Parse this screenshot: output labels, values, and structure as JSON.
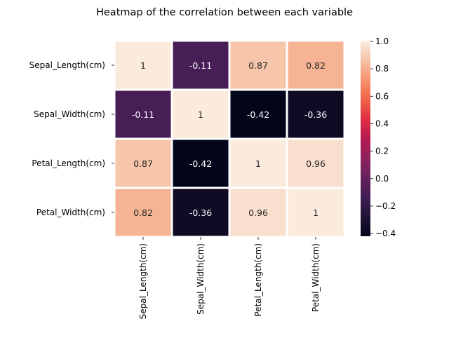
{
  "chart_data": {
    "type": "heatmap",
    "title": "Heatmap of the correlation between each variable",
    "xlabel": "",
    "ylabel": "",
    "rows": [
      "Sepal_Length(cm)",
      "Sepal_Width(cm)",
      "Petal_Length(cm)",
      "Petal_Width(cm)"
    ],
    "columns": [
      "Sepal_Length(cm)",
      "Sepal_Width(cm)",
      "Petal_Length(cm)",
      "Petal_Width(cm)"
    ],
    "values": [
      [
        1,
        -0.11,
        0.87,
        0.82
      ],
      [
        -0.11,
        1,
        -0.42,
        -0.36
      ],
      [
        0.87,
        -0.42,
        1,
        0.96
      ],
      [
        0.82,
        -0.36,
        0.96,
        1
      ]
    ],
    "cell_labels": [
      [
        "1",
        "-0.11",
        "0.87",
        "0.82"
      ],
      [
        "-0.11",
        "1",
        "-0.42",
        "-0.36"
      ],
      [
        "0.87",
        "-0.42",
        "1",
        "0.96"
      ],
      [
        "0.82",
        "-0.36",
        "0.96",
        "1"
      ]
    ],
    "colormap": "rocket",
    "colorbar": {
      "range": [
        -0.42,
        1.0
      ],
      "ticks": [
        -0.4,
        -0.2,
        0.0,
        0.2,
        0.4,
        0.6,
        0.8,
        1.0
      ],
      "tick_labels": [
        "−0.4",
        "−0.2",
        "0.0",
        "0.2",
        "0.4",
        "0.6",
        "0.8",
        "1.0"
      ]
    },
    "cell_border_color": "#ffffff",
    "annotation_colors": {
      "on_dark": "#ffffff",
      "on_light": "#262626"
    }
  }
}
